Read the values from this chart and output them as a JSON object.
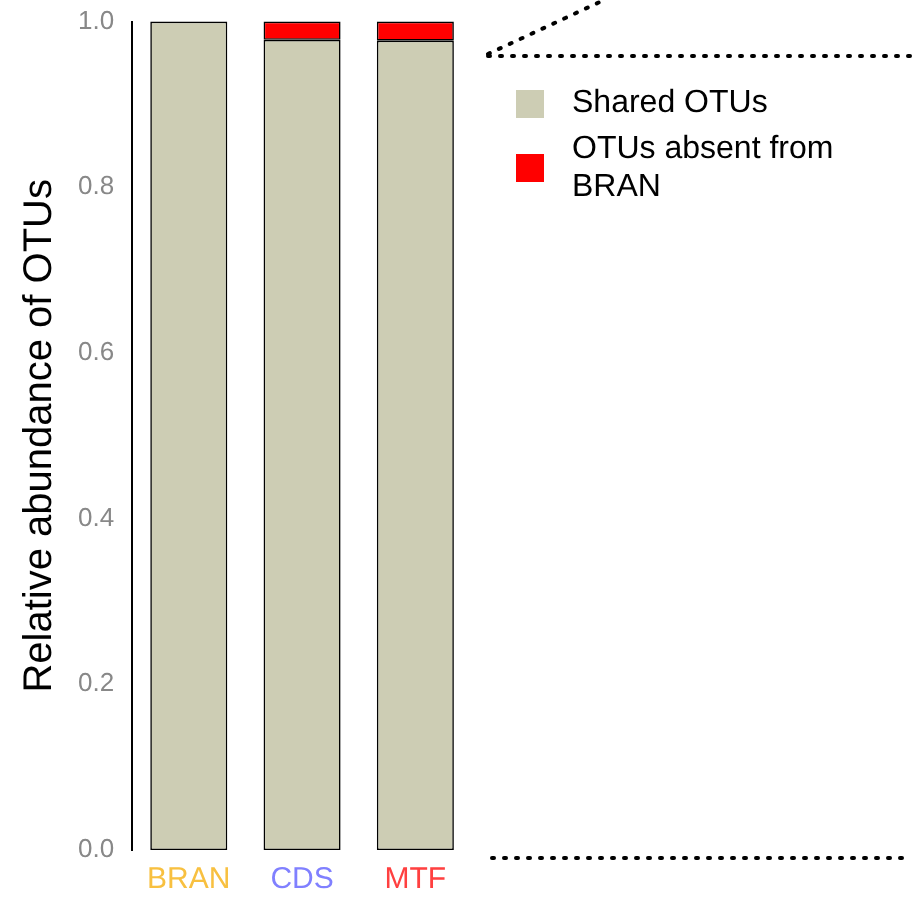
{
  "chart_data": {
    "type": "bar",
    "ylabel": "Relative abundance of OTUs",
    "categories": [
      "BRAN",
      "CDS",
      "MTF"
    ],
    "stacked": true,
    "series": [
      {
        "name": "Shared OTUs",
        "color": "#cdcdb4",
        "values": [
          1.0,
          0.978,
          0.977
        ]
      },
      {
        "name": "OTUs absent from BRAN",
        "color": "#ff0000",
        "values": [
          0,
          0.022,
          0.023
        ]
      }
    ],
    "ylim": [
      0,
      1
    ],
    "yticks": [
      {
        "value": 0,
        "label": "0.0"
      },
      0.2,
      0.4,
      0.6,
      0.8,
      {
        "value": 1,
        "label": "1.0"
      }
    ],
    "grid": false,
    "legend": "right"
  }
}
